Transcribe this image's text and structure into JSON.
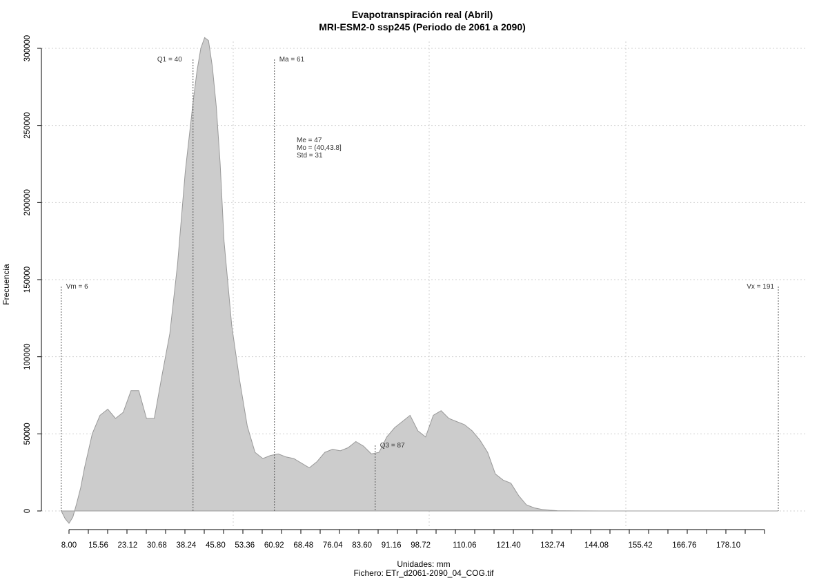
{
  "chart_data": {
    "type": "area",
    "title": "Evapotranspiración real (Abril)",
    "subtitle": "MRI-ESM2-0 ssp245 (Periodo de 2061 a 2090)",
    "xlabel": "Unidades: mm",
    "ylabel": "Frecuencia",
    "file_label": "Fichero: ETr_d2061-2090_04_COG.tif",
    "xlim": [
      8,
      191
    ],
    "ylim": [
      0,
      300000
    ],
    "x_ticks": [
      "8.00",
      "15.56",
      "23.12",
      "30.68",
      "38.24",
      "45.80",
      "53.36",
      "60.92",
      "68.48",
      "76.04",
      "83.60",
      "91.16",
      "98.72",
      "110.06",
      "121.40",
      "132.74",
      "144.08",
      "155.42",
      "166.76",
      "178.10"
    ],
    "y_ticks": [
      "0",
      "50000",
      "100000",
      "150000",
      "200000",
      "250000",
      "300000"
    ],
    "grid": true,
    "fill_color": "#cccccc",
    "line_color": "#999999",
    "x": [
      6,
      7,
      8,
      9,
      10,
      11,
      12,
      14,
      16,
      18,
      20,
      22,
      24,
      26,
      28,
      30,
      32,
      34,
      36,
      38,
      40,
      41,
      42,
      43,
      44,
      45,
      46,
      47,
      48,
      50,
      52,
      54,
      56,
      58,
      60,
      62,
      64,
      66,
      68,
      70,
      72,
      74,
      76,
      78,
      80,
      82,
      84,
      86,
      88,
      90,
      92,
      94,
      96,
      98,
      100,
      102,
      104,
      106,
      108,
      110,
      112,
      114,
      116,
      118,
      120,
      122,
      124,
      126,
      128,
      130,
      132,
      134,
      136,
      140,
      145,
      150,
      160,
      170,
      180,
      191
    ],
    "y": [
      0,
      -5000,
      -8000,
      -4000,
      5000,
      15000,
      28000,
      50000,
      62000,
      66000,
      60000,
      64000,
      78000,
      78000,
      60000,
      60000,
      88000,
      115000,
      160000,
      220000,
      265000,
      285000,
      300000,
      307000,
      305000,
      288000,
      262000,
      225000,
      175000,
      120000,
      85000,
      55000,
      38000,
      34000,
      36000,
      37000,
      35000,
      34000,
      31000,
      28000,
      32000,
      38000,
      40000,
      39000,
      41000,
      45000,
      42000,
      37000,
      38000,
      48000,
      54000,
      58000,
      62000,
      52000,
      48000,
      62000,
      65000,
      60000,
      58000,
      56000,
      52000,
      46000,
      38000,
      24000,
      20000,
      18000,
      10000,
      4000,
      2000,
      1000,
      500,
      200,
      100,
      50,
      20,
      10,
      5,
      2,
      1,
      0
    ],
    "vlines": [
      {
        "label": "Vm = 6",
        "x": 6
      },
      {
        "label": "Q1 = 40",
        "x": 40
      },
      {
        "label": "Ma = 61",
        "x": 61
      },
      {
        "label": "Q3 = 87",
        "x": 87
      },
      {
        "label": "Vx = 191",
        "x": 191
      }
    ],
    "stats": [
      "Me = 47",
      "Mo = (40,43.8]",
      "Std = 31"
    ]
  }
}
